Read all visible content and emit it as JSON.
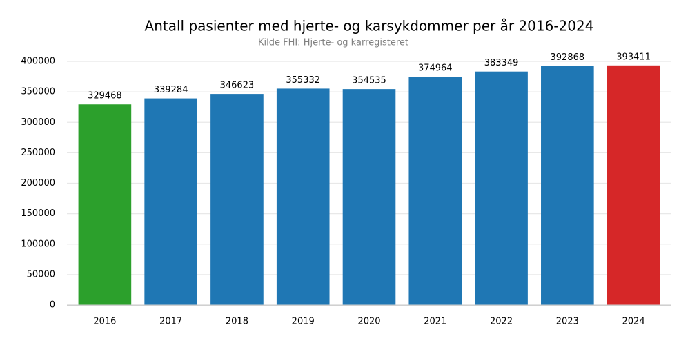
{
  "chart_data": {
    "type": "bar",
    "title": "Antall pasienter med hjerte- og karsykdommer per år 2016-2024",
    "subtitle": "Kilde FHI: Hjerte- og karregisteret",
    "categories": [
      "2016",
      "2017",
      "2018",
      "2019",
      "2020",
      "2021",
      "2022",
      "2023",
      "2024"
    ],
    "values": [
      329468,
      339284,
      346623,
      355332,
      354535,
      374964,
      383349,
      392868,
      393411
    ],
    "colors": [
      "#2ca02c",
      "#1f77b4",
      "#1f77b4",
      "#1f77b4",
      "#1f77b4",
      "#1f77b4",
      "#1f77b4",
      "#1f77b4",
      "#d62728"
    ],
    "ylim": [
      0,
      400000
    ],
    "yticks": [
      0,
      50000,
      100000,
      150000,
      200000,
      250000,
      300000,
      350000,
      400000
    ],
    "grid": true
  }
}
